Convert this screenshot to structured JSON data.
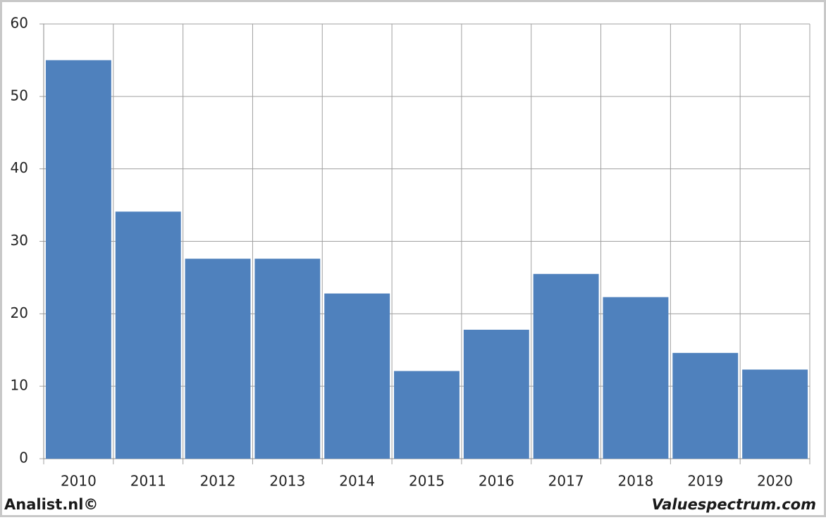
{
  "chart_data": {
    "type": "bar",
    "categories": [
      "2010",
      "2011",
      "2012",
      "2013",
      "2014",
      "2015",
      "2016",
      "2017",
      "2018",
      "2019",
      "2020"
    ],
    "values": [
      55,
      34.1,
      27.6,
      27.6,
      22.8,
      12.1,
      17.8,
      25.5,
      22.3,
      14.6,
      12.3
    ],
    "color": "#4f81bd",
    "ylim": [
      0,
      60
    ],
    "yticks": [
      0,
      10,
      20,
      30,
      40,
      50,
      60
    ],
    "grid": true
  },
  "footer": {
    "left": "Analist.nl©",
    "right": "Valuespectrum.com"
  }
}
